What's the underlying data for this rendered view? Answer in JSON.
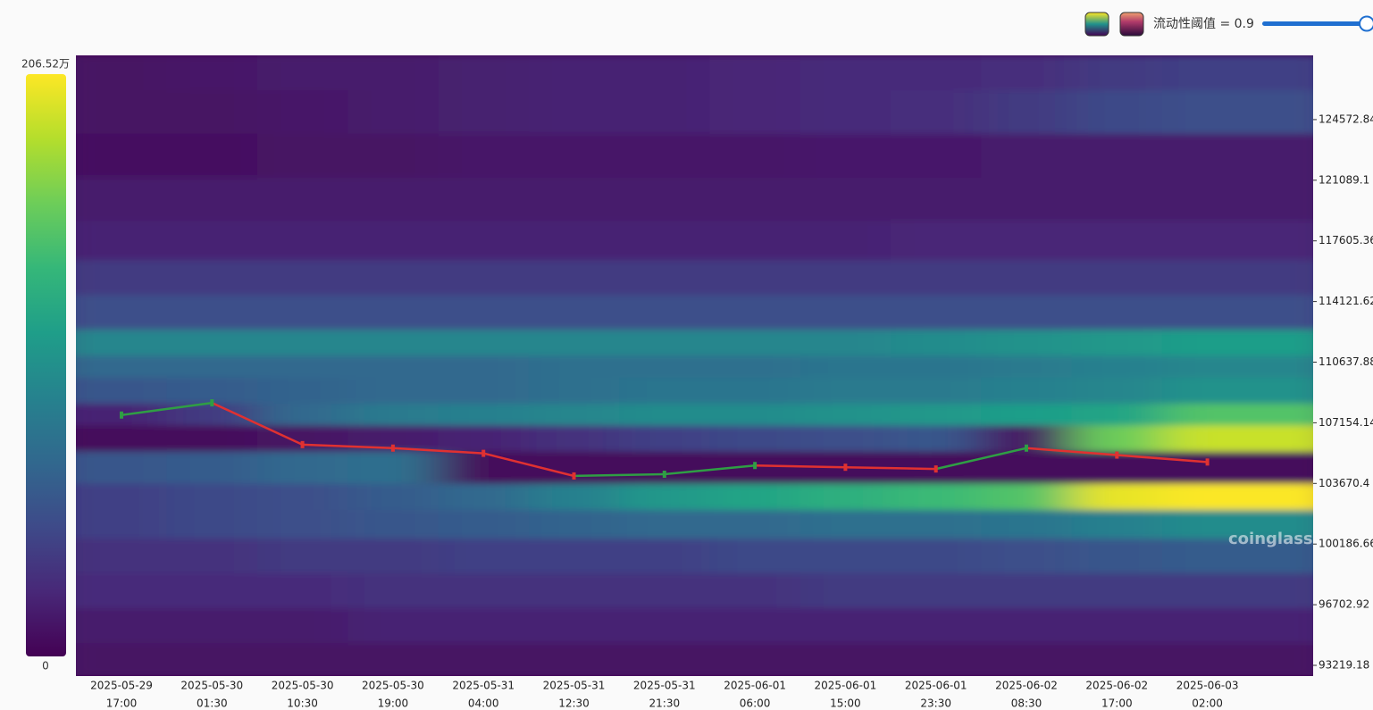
{
  "chart_data": {
    "type": "heatmap",
    "slider_label": "流动性阈值 = 0.9",
    "watermark": "coinglass",
    "colorbar": {
      "max": {
        "value": 206.52,
        "label": "206.52万"
      },
      "min": 0
    },
    "categories": [
      [
        "2025-05-29",
        "17:00"
      ],
      [
        "2025-05-30",
        "01:30"
      ],
      [
        "2025-05-30",
        "10:30"
      ],
      [
        "2025-05-30",
        "19:00"
      ],
      [
        "2025-05-31",
        "04:00"
      ],
      [
        "2025-05-31",
        "12:30"
      ],
      [
        "2025-05-31",
        "21:30"
      ],
      [
        "2025-06-01",
        "06:00"
      ],
      [
        "2025-06-01",
        "15:00"
      ],
      [
        "2025-06-01",
        "23:30"
      ],
      [
        "2025-06-02",
        "08:30"
      ],
      [
        "2025-06-02",
        "17:00"
      ],
      [
        "2025-06-03",
        "02:00"
      ]
    ],
    "levels": [
      127500,
      125000,
      122500,
      120000,
      117500,
      115500,
      113500,
      111500,
      110500,
      109000,
      107500,
      106500,
      104500,
      102800,
      101500,
      99500,
      97500,
      95500,
      93500
    ],
    "z": [
      [
        10,
        12,
        15,
        15,
        18,
        20,
        20,
        22,
        25,
        25,
        28,
        35,
        40
      ],
      [
        10,
        10,
        12,
        15,
        18,
        20,
        20,
        22,
        25,
        28,
        35,
        45,
        50
      ],
      [
        8,
        8,
        10,
        10,
        12,
        12,
        12,
        12,
        14,
        14,
        15,
        15,
        15
      ],
      [
        15,
        15,
        15,
        15,
        15,
        15,
        15,
        15,
        15,
        15,
        15,
        15,
        15
      ],
      [
        20,
        20,
        20,
        20,
        20,
        20,
        20,
        20,
        20,
        22,
        22,
        22,
        22
      ],
      [
        35,
        35,
        35,
        35,
        35,
        35,
        35,
        35,
        35,
        35,
        35,
        35,
        35
      ],
      [
        50,
        50,
        50,
        50,
        50,
        50,
        50,
        50,
        50,
        50,
        50,
        50,
        50
      ],
      [
        95,
        95,
        95,
        95,
        95,
        95,
        95,
        95,
        95,
        100,
        105,
        110,
        115
      ],
      [
        70,
        70,
        70,
        70,
        70,
        75,
        75,
        75,
        80,
        80,
        85,
        90,
        95
      ],
      [
        55,
        60,
        65,
        70,
        70,
        75,
        80,
        80,
        85,
        85,
        90,
        95,
        105
      ],
      [
        20,
        35,
        70,
        85,
        90,
        95,
        100,
        100,
        105,
        110,
        115,
        120,
        150
      ],
      [
        5,
        5,
        10,
        15,
        20,
        30,
        40,
        45,
        50,
        55,
        10,
        160,
        190
      ],
      [
        55,
        60,
        70,
        75,
        5,
        5,
        5,
        5,
        5,
        5,
        5,
        5,
        5
      ],
      [
        40,
        45,
        50,
        60,
        70,
        90,
        110,
        120,
        130,
        140,
        150,
        200,
        206
      ],
      [
        40,
        45,
        50,
        55,
        60,
        65,
        70,
        70,
        75,
        75,
        80,
        90,
        100
      ],
      [
        30,
        30,
        35,
        35,
        40,
        40,
        40,
        45,
        45,
        45,
        50,
        55,
        60
      ],
      [
        25,
        25,
        25,
        30,
        30,
        30,
        30,
        30,
        35,
        35,
        35,
        35,
        35
      ],
      [
        15,
        15,
        15,
        20,
        20,
        20,
        20,
        20,
        20,
        20,
        20,
        20,
        20
      ],
      [
        10,
        10,
        10,
        10,
        10,
        10,
        10,
        10,
        10,
        10,
        10,
        10,
        10
      ]
    ],
    "price": {
      "up_color": "#2f9e44",
      "down_color": "#e03131",
      "values": [
        107600,
        108300,
        105900,
        105700,
        105400,
        104100,
        104200,
        104700,
        104600,
        104500,
        105700,
        105300,
        104900
      ]
    },
    "ylim": [
      92604,
      128262
    ],
    "yticks": [
      93219.18,
      96702.92,
      100186.66,
      103670.4,
      107154.14,
      110637.88,
      114121.62,
      117605.36,
      121089.1,
      124572.84
    ]
  }
}
